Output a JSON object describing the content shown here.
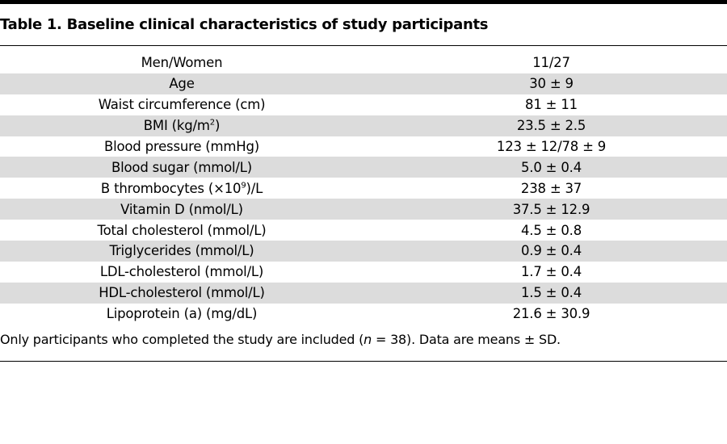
{
  "title": "Table 1. Baseline clinical characteristics of study participants",
  "rows": [
    {
      "label": "Men/Women",
      "value": "11/27"
    },
    {
      "label": "Age",
      "value": "30 ± 9"
    },
    {
      "label": "Waist circumference (cm)",
      "value": "81 ± 11"
    },
    {
      "label_pre": "BMI (kg/m",
      "label_sup": "2",
      "label_post": ")",
      "value": "23.5 ± 2.5"
    },
    {
      "label": "Blood pressure (mmHg)",
      "value": "123 ± 12/78 ± 9"
    },
    {
      "label": "Blood sugar (mmol/L)",
      "value": "5.0 ± 0.4"
    },
    {
      "label_pre": "B thrombocytes (×10",
      "label_sup": "9",
      "label_post": ")/L",
      "value": "238 ± 37"
    },
    {
      "label": "Vitamin D (nmol/L)",
      "value": "37.5 ± 12.9"
    },
    {
      "label": "Total cholesterol (mmol/L)",
      "value": "4.5 ± 0.8"
    },
    {
      "label": "Triglycerides (mmol/L)",
      "value": "0.9 ± 0.4"
    },
    {
      "label": "LDL-cholesterol (mmol/L)",
      "value": "1.7 ± 0.4"
    },
    {
      "label": "HDL-cholesterol (mmol/L)",
      "value": "1.5 ± 0.4"
    },
    {
      "label": "Lipoprotein (a) (mg/dL)",
      "value": "21.6 ± 30.9"
    }
  ],
  "note": {
    "pre": "Only participants who completed the study are included (",
    "italic": "n",
    "post": " = 38). Data are means ± SD."
  },
  "colors": {
    "shade": "#dcdcdc",
    "rule": "#000000"
  }
}
